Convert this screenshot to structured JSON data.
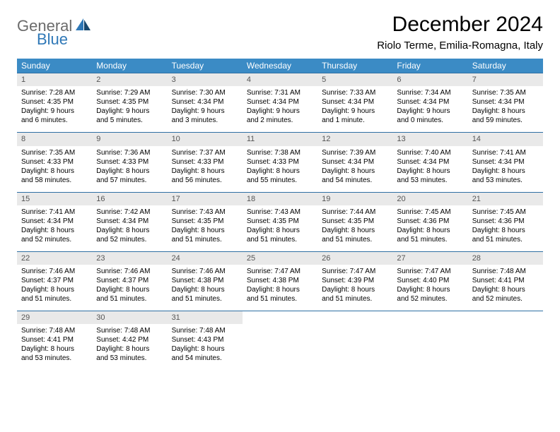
{
  "logo": {
    "text1": "General",
    "text2": "Blue"
  },
  "title": "December 2024",
  "subtitle": "Riolo Terme, Emilia-Romagna, Italy",
  "colors": {
    "header_bg": "#3b8bc5",
    "header_text": "#ffffff",
    "daynum_bg": "#e9e9e9",
    "daynum_text": "#555555",
    "rule": "#2f6fa3",
    "logo_gray": "#6b6b6b",
    "logo_blue": "#2f78b7"
  },
  "weekdays": [
    "Sunday",
    "Monday",
    "Tuesday",
    "Wednesday",
    "Thursday",
    "Friday",
    "Saturday"
  ],
  "weeks": [
    [
      {
        "n": "1",
        "sunrise": "Sunrise: 7:28 AM",
        "sunset": "Sunset: 4:35 PM",
        "day1": "Daylight: 9 hours",
        "day2": "and 6 minutes."
      },
      {
        "n": "2",
        "sunrise": "Sunrise: 7:29 AM",
        "sunset": "Sunset: 4:35 PM",
        "day1": "Daylight: 9 hours",
        "day2": "and 5 minutes."
      },
      {
        "n": "3",
        "sunrise": "Sunrise: 7:30 AM",
        "sunset": "Sunset: 4:34 PM",
        "day1": "Daylight: 9 hours",
        "day2": "and 3 minutes."
      },
      {
        "n": "4",
        "sunrise": "Sunrise: 7:31 AM",
        "sunset": "Sunset: 4:34 PM",
        "day1": "Daylight: 9 hours",
        "day2": "and 2 minutes."
      },
      {
        "n": "5",
        "sunrise": "Sunrise: 7:33 AM",
        "sunset": "Sunset: 4:34 PM",
        "day1": "Daylight: 9 hours",
        "day2": "and 1 minute."
      },
      {
        "n": "6",
        "sunrise": "Sunrise: 7:34 AM",
        "sunset": "Sunset: 4:34 PM",
        "day1": "Daylight: 9 hours",
        "day2": "and 0 minutes."
      },
      {
        "n": "7",
        "sunrise": "Sunrise: 7:35 AM",
        "sunset": "Sunset: 4:34 PM",
        "day1": "Daylight: 8 hours",
        "day2": "and 59 minutes."
      }
    ],
    [
      {
        "n": "8",
        "sunrise": "Sunrise: 7:35 AM",
        "sunset": "Sunset: 4:33 PM",
        "day1": "Daylight: 8 hours",
        "day2": "and 58 minutes."
      },
      {
        "n": "9",
        "sunrise": "Sunrise: 7:36 AM",
        "sunset": "Sunset: 4:33 PM",
        "day1": "Daylight: 8 hours",
        "day2": "and 57 minutes."
      },
      {
        "n": "10",
        "sunrise": "Sunrise: 7:37 AM",
        "sunset": "Sunset: 4:33 PM",
        "day1": "Daylight: 8 hours",
        "day2": "and 56 minutes."
      },
      {
        "n": "11",
        "sunrise": "Sunrise: 7:38 AM",
        "sunset": "Sunset: 4:33 PM",
        "day1": "Daylight: 8 hours",
        "day2": "and 55 minutes."
      },
      {
        "n": "12",
        "sunrise": "Sunrise: 7:39 AM",
        "sunset": "Sunset: 4:34 PM",
        "day1": "Daylight: 8 hours",
        "day2": "and 54 minutes."
      },
      {
        "n": "13",
        "sunrise": "Sunrise: 7:40 AM",
        "sunset": "Sunset: 4:34 PM",
        "day1": "Daylight: 8 hours",
        "day2": "and 53 minutes."
      },
      {
        "n": "14",
        "sunrise": "Sunrise: 7:41 AM",
        "sunset": "Sunset: 4:34 PM",
        "day1": "Daylight: 8 hours",
        "day2": "and 53 minutes."
      }
    ],
    [
      {
        "n": "15",
        "sunrise": "Sunrise: 7:41 AM",
        "sunset": "Sunset: 4:34 PM",
        "day1": "Daylight: 8 hours",
        "day2": "and 52 minutes."
      },
      {
        "n": "16",
        "sunrise": "Sunrise: 7:42 AM",
        "sunset": "Sunset: 4:34 PM",
        "day1": "Daylight: 8 hours",
        "day2": "and 52 minutes."
      },
      {
        "n": "17",
        "sunrise": "Sunrise: 7:43 AM",
        "sunset": "Sunset: 4:35 PM",
        "day1": "Daylight: 8 hours",
        "day2": "and 51 minutes."
      },
      {
        "n": "18",
        "sunrise": "Sunrise: 7:43 AM",
        "sunset": "Sunset: 4:35 PM",
        "day1": "Daylight: 8 hours",
        "day2": "and 51 minutes."
      },
      {
        "n": "19",
        "sunrise": "Sunrise: 7:44 AM",
        "sunset": "Sunset: 4:35 PM",
        "day1": "Daylight: 8 hours",
        "day2": "and 51 minutes."
      },
      {
        "n": "20",
        "sunrise": "Sunrise: 7:45 AM",
        "sunset": "Sunset: 4:36 PM",
        "day1": "Daylight: 8 hours",
        "day2": "and 51 minutes."
      },
      {
        "n": "21",
        "sunrise": "Sunrise: 7:45 AM",
        "sunset": "Sunset: 4:36 PM",
        "day1": "Daylight: 8 hours",
        "day2": "and 51 minutes."
      }
    ],
    [
      {
        "n": "22",
        "sunrise": "Sunrise: 7:46 AM",
        "sunset": "Sunset: 4:37 PM",
        "day1": "Daylight: 8 hours",
        "day2": "and 51 minutes."
      },
      {
        "n": "23",
        "sunrise": "Sunrise: 7:46 AM",
        "sunset": "Sunset: 4:37 PM",
        "day1": "Daylight: 8 hours",
        "day2": "and 51 minutes."
      },
      {
        "n": "24",
        "sunrise": "Sunrise: 7:46 AM",
        "sunset": "Sunset: 4:38 PM",
        "day1": "Daylight: 8 hours",
        "day2": "and 51 minutes."
      },
      {
        "n": "25",
        "sunrise": "Sunrise: 7:47 AM",
        "sunset": "Sunset: 4:38 PM",
        "day1": "Daylight: 8 hours",
        "day2": "and 51 minutes."
      },
      {
        "n": "26",
        "sunrise": "Sunrise: 7:47 AM",
        "sunset": "Sunset: 4:39 PM",
        "day1": "Daylight: 8 hours",
        "day2": "and 51 minutes."
      },
      {
        "n": "27",
        "sunrise": "Sunrise: 7:47 AM",
        "sunset": "Sunset: 4:40 PM",
        "day1": "Daylight: 8 hours",
        "day2": "and 52 minutes."
      },
      {
        "n": "28",
        "sunrise": "Sunrise: 7:48 AM",
        "sunset": "Sunset: 4:41 PM",
        "day1": "Daylight: 8 hours",
        "day2": "and 52 minutes."
      }
    ],
    [
      {
        "n": "29",
        "sunrise": "Sunrise: 7:48 AM",
        "sunset": "Sunset: 4:41 PM",
        "day1": "Daylight: 8 hours",
        "day2": "and 53 minutes."
      },
      {
        "n": "30",
        "sunrise": "Sunrise: 7:48 AM",
        "sunset": "Sunset: 4:42 PM",
        "day1": "Daylight: 8 hours",
        "day2": "and 53 minutes."
      },
      {
        "n": "31",
        "sunrise": "Sunrise: 7:48 AM",
        "sunset": "Sunset: 4:43 PM",
        "day1": "Daylight: 8 hours",
        "day2": "and 54 minutes."
      },
      null,
      null,
      null,
      null
    ]
  ]
}
